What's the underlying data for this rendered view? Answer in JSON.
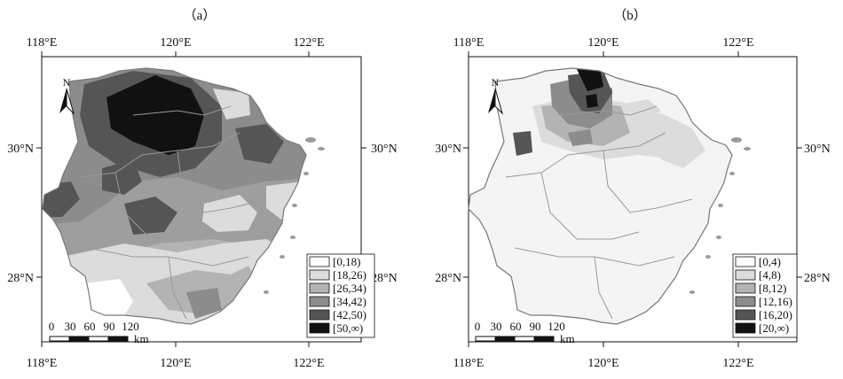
{
  "panels": [
    {
      "id": "a",
      "label": "（a）",
      "top_lon_labels": [
        "118°E",
        "120°E",
        "122°E"
      ],
      "bottom_lon_labels": [
        "118°E",
        "120°E",
        "122°E"
      ],
      "left_lat_labels": [
        "30°N",
        "28°N"
      ],
      "right_lat_labels": [
        "30°N",
        "28°N"
      ],
      "north_label": "N",
      "scale_ticks": [
        "0",
        "30",
        "60",
        "90",
        "120"
      ],
      "scale_unit": "km",
      "legend": [
        {
          "label": "[0,18)",
          "color": "#ffffff"
        },
        {
          "label": "[18,26)",
          "color": "#dcdcdc"
        },
        {
          "label": "[26,34)",
          "color": "#b3b3b3"
        },
        {
          "label": "[34,42)",
          "color": "#8c8c8c"
        },
        {
          "label": "[42,50)",
          "color": "#555555"
        },
        {
          "label": "[50,∞)",
          "color": "#111111"
        }
      ]
    },
    {
      "id": "b",
      "label": "（b）",
      "top_lon_labels": [
        "118°E",
        "120°E",
        "122°E"
      ],
      "bottom_lon_labels": [
        "118°E",
        "120°E",
        "122°E"
      ],
      "left_lat_labels": [
        "30°N",
        "28°N"
      ],
      "right_lat_labels": [
        "30°N",
        "28°N"
      ],
      "north_label": "N",
      "scale_ticks": [
        "0",
        "30",
        "60",
        "90",
        "120"
      ],
      "scale_unit": "km",
      "legend": [
        {
          "label": "[0,4)",
          "color": "#ffffff"
        },
        {
          "label": "[4,8)",
          "color": "#dcdcdc"
        },
        {
          "label": "[8,12)",
          "color": "#b3b3b3"
        },
        {
          "label": "[12,16)",
          "color": "#8c8c8c"
        },
        {
          "label": "[16,20)",
          "color": "#555555"
        },
        {
          "label": "[20,∞)",
          "color": "#111111"
        }
      ]
    }
  ]
}
